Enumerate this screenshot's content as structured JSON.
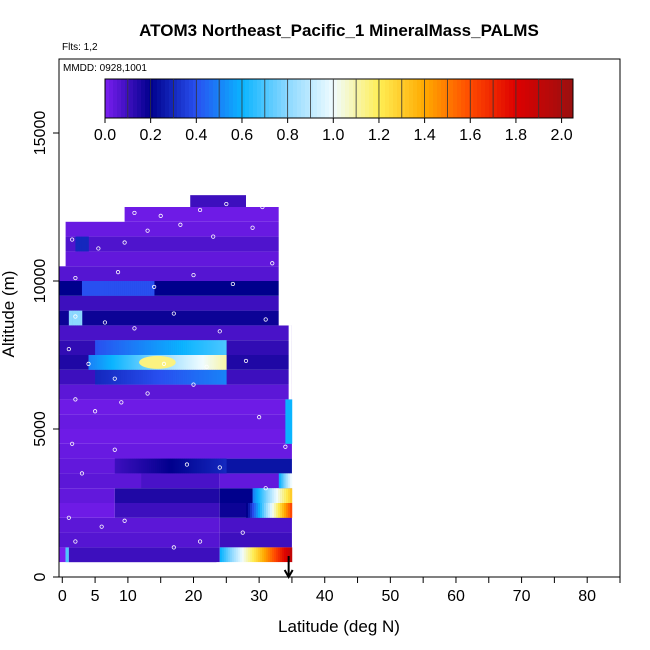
{
  "chart_data": {
    "type": "heatmap",
    "title": "ATOM3 Northeast_Pacific_1 MineralMass_PALMS",
    "subtitle_flights": "Flts: 1,2",
    "subtitle_dates": "MMDD: 0928,1001",
    "xlabel": "Latitude (deg N)",
    "ylabel": "Altitude (m)",
    "xlim": [
      -0.5,
      85
    ],
    "ylim": [
      0,
      17500
    ],
    "x_ticks": [
      0,
      5,
      10,
      20,
      30,
      40,
      50,
      60,
      70,
      80
    ],
    "x_tick_labels": [
      "0",
      "5",
      "10",
      "20",
      "30",
      "40",
      "50",
      "60",
      "70",
      "80"
    ],
    "x_minor_ticks": [
      15,
      25,
      35,
      45,
      55,
      65,
      75,
      85
    ],
    "y_ticks": [
      0,
      5000,
      10000,
      15000
    ],
    "y_tick_labels": [
      "0",
      "5000",
      "10000",
      "15000"
    ],
    "colorbar": {
      "min": 0.0,
      "max": 2.05,
      "tick_values": [
        0.0,
        0.2,
        0.4,
        0.6,
        0.8,
        1.0,
        1.2,
        1.4,
        1.6,
        1.8,
        2.0
      ],
      "tick_labels": [
        "0.0",
        "0.2",
        "0.4",
        "0.6",
        "0.8",
        "1.0",
        "1.2",
        "1.4",
        "1.6",
        "1.8",
        "2.0"
      ],
      "stops": [
        {
          "v": 0.0,
          "color": "#7a1ef0"
        },
        {
          "v": 0.2,
          "color": "#00008c"
        },
        {
          "v": 0.4,
          "color": "#2850f0"
        },
        {
          "v": 0.6,
          "color": "#0ab4ff"
        },
        {
          "v": 0.8,
          "color": "#8cd8ff"
        },
        {
          "v": 1.0,
          "color": "#f0fcff"
        },
        {
          "v": 1.2,
          "color": "#ffee55"
        },
        {
          "v": 1.4,
          "color": "#ffaa00"
        },
        {
          "v": 1.6,
          "color": "#ff4a00"
        },
        {
          "v": 1.8,
          "color": "#dd0000"
        },
        {
          "v": 2.05,
          "color": "#9a1010"
        }
      ]
    },
    "bands": [
      {
        "a0": 500,
        "a1": 1000,
        "segs": [
          [
            -0.5,
            0.5,
            0.0
          ],
          [
            0.5,
            1.0,
            0.7
          ],
          [
            1.0,
            24,
            0.1
          ]
        ]
      },
      {
        "a0": 1000,
        "a1": 1500,
        "segs": [
          [
            -0.5,
            24,
            0.06
          ],
          [
            24,
            35,
            0.1
          ]
        ]
      },
      {
        "a0": 1500,
        "a1": 2000,
        "segs": [
          [
            -0.5,
            24,
            0.05
          ],
          [
            24,
            35,
            0.08
          ]
        ]
      },
      {
        "a0": 2000,
        "a1": 2500,
        "segs": [
          [
            -0.5,
            8,
            0.02
          ],
          [
            8,
            24,
            0.1
          ],
          [
            24,
            30,
            0.18
          ],
          [
            30,
            35,
            0.12
          ]
        ]
      },
      {
        "a0": 2500,
        "a1": 3000,
        "segs": [
          [
            -0.5,
            8,
            0.04
          ],
          [
            8,
            24,
            0.15
          ],
          [
            24,
            30,
            0.2
          ],
          [
            30,
            35,
            0.12
          ]
        ]
      },
      {
        "a0": 3000,
        "a1": 3500,
        "segs": [
          [
            -0.5,
            12,
            0.05
          ],
          [
            12,
            24,
            0.08
          ],
          [
            24,
            35,
            0.04
          ]
        ]
      },
      {
        "a0": 3500,
        "a1": 4000,
        "segs": [
          [
            -0.5,
            15,
            0.04
          ],
          [
            15,
            24,
            0.1
          ],
          [
            24,
            35,
            0.25
          ]
        ]
      },
      {
        "a0": 4000,
        "a1": 4500,
        "segs": [
          [
            -0.5,
            35,
            0.03
          ]
        ]
      },
      {
        "a0": 4500,
        "a1": 5000,
        "segs": [
          [
            -0.5,
            35,
            0.02
          ]
        ]
      },
      {
        "a0": 5000,
        "a1": 5500,
        "segs": [
          [
            -0.5,
            35,
            0.03
          ]
        ]
      },
      {
        "a0": 5500,
        "a1": 6000,
        "segs": [
          [
            -0.5,
            35,
            0.02
          ]
        ]
      },
      {
        "a0": 6000,
        "a1": 6500,
        "segs": [
          [
            -0.5,
            35,
            0.05
          ]
        ]
      },
      {
        "a0": 6500,
        "a1": 7000,
        "segs": [
          [
            -0.5,
            35,
            0.1
          ]
        ]
      },
      {
        "a0": 7000,
        "a1": 7500,
        "segs": [
          [
            -0.5,
            35,
            0.15
          ]
        ]
      },
      {
        "a0": 7500,
        "a1": 8000,
        "segs": [
          [
            -0.5,
            35,
            0.12
          ]
        ]
      },
      {
        "a0": 8000,
        "a1": 8500,
        "segs": [
          [
            -0.5,
            35,
            0.08
          ]
        ]
      },
      {
        "a0": 8500,
        "a1": 9000,
        "segs": [
          [
            -0.5,
            33,
            0.18
          ]
        ]
      },
      {
        "a0": 9000,
        "a1": 9500,
        "segs": [
          [
            -0.5,
            33,
            0.1
          ]
        ]
      },
      {
        "a0": 9500,
        "a1": 10000,
        "segs": [
          [
            -0.5,
            33,
            0.2
          ]
        ]
      },
      {
        "a0": 10000,
        "a1": 10500,
        "segs": [
          [
            -0.5,
            33,
            0.06
          ]
        ]
      },
      {
        "a0": 10500,
        "a1": 11000,
        "segs": [
          [
            0.5,
            33,
            0.04
          ]
        ]
      },
      {
        "a0": 11000,
        "a1": 11500,
        "segs": [
          [
            0.5,
            33,
            0.07
          ]
        ]
      },
      {
        "a0": 11500,
        "a1": 12000,
        "segs": [
          [
            0.5,
            33,
            0.03
          ]
        ]
      },
      {
        "a0": 12000,
        "a1": 12500,
        "segs": [
          [
            9.5,
            33,
            0.02
          ]
        ]
      },
      {
        "a0": 12500,
        "a1": 12900,
        "segs": [
          [
            19.5,
            28,
            0.1
          ]
        ]
      }
    ],
    "features": [
      {
        "x0": 24,
        "x1": 35,
        "a0": 500,
        "a1": 1000,
        "v0": 0.6,
        "v1": 1.9
      },
      {
        "x0": 28,
        "x1": 35,
        "a0": 2000,
        "a1": 2500,
        "v0": 0.2,
        "v1": 1.6
      },
      {
        "x0": 29,
        "x1": 35,
        "a0": 2500,
        "a1": 3000,
        "v0": 0.5,
        "v1": 1.3
      },
      {
        "x0": 33,
        "x1": 35,
        "a0": 3000,
        "a1": 3500,
        "v0": 0.6,
        "v1": 1.0
      },
      {
        "x0": 8,
        "x1": 25,
        "a0": 3500,
        "a1": 4000,
        "v0": 0.1,
        "v1": 0.3
      },
      {
        "x0": 34,
        "x1": 35,
        "a0": 4500,
        "a1": 6000,
        "v0": 0.6,
        "v1": 0.6
      },
      {
        "x0": 5,
        "x1": 25,
        "a0": 6500,
        "a1": 7000,
        "v0": 0.3,
        "v1": 0.5
      },
      {
        "x0": 4,
        "x1": 25,
        "a0": 7000,
        "a1": 7500,
        "v0": 0.5,
        "v1": 1.1
      },
      {
        "x0": 5,
        "x1": 25,
        "a0": 7500,
        "a1": 8000,
        "v0": 0.4,
        "v1": 0.7
      },
      {
        "x0": 1,
        "x1": 3,
        "a0": 8500,
        "a1": 9000,
        "v0": 0.8,
        "v1": 0.8
      },
      {
        "x0": 3,
        "x1": 14,
        "a0": 9500,
        "a1": 10000,
        "v0": 0.4,
        "v1": 0.4
      },
      {
        "x0": 2,
        "x1": 4,
        "a0": 11000,
        "a1": 11500,
        "v0": 0.3,
        "v1": 0.3
      }
    ],
    "highlights": [
      {
        "x": 14.5,
        "a": 7250,
        "r": 2.8,
        "ra": 220,
        "v": 1.15
      }
    ],
    "empty_patches": [
      {
        "x0": 23.5,
        "x1": 35,
        "a0": 0,
        "a1": 500
      },
      {
        "x0": -0.5,
        "x1": 0.5,
        "a0": 0,
        "a1": 500
      },
      {
        "x0": -0.5,
        "x1": 0.5,
        "a0": 10500,
        "a1": 12000
      },
      {
        "x0": 33,
        "x1": 35,
        "a0": 8500,
        "a1": 12900
      },
      {
        "x0": 34.5,
        "x1": 35,
        "a0": 6000,
        "a1": 8500
      }
    ],
    "sample_points": [
      [
        0.5,
        200
      ],
      [
        1.0,
        2000
      ],
      [
        4.5,
        200
      ],
      [
        7.0,
        200
      ],
      [
        12.0,
        200
      ],
      [
        14.0,
        200
      ],
      [
        16.5,
        200
      ],
      [
        2.0,
        1200
      ],
      [
        6.0,
        1700
      ],
      [
        9.5,
        1900
      ],
      [
        17.0,
        1000
      ],
      [
        21.0,
        1200
      ],
      [
        27.5,
        1500
      ],
      [
        1.5,
        4500
      ],
      [
        3.0,
        3500
      ],
      [
        8.0,
        4300
      ],
      [
        19.0,
        3800
      ],
      [
        24.0,
        3700
      ],
      [
        31.0,
        3000
      ],
      [
        2.0,
        6000
      ],
      [
        5.0,
        5600
      ],
      [
        9.0,
        5900
      ],
      [
        13.0,
        6200
      ],
      [
        20.0,
        6500
      ],
      [
        30.0,
        5400
      ],
      [
        34.0,
        4400
      ],
      [
        1.0,
        7700
      ],
      [
        4.0,
        7200
      ],
      [
        8.0,
        6700
      ],
      [
        15.5,
        7200
      ],
      [
        22.0,
        7100
      ],
      [
        28.0,
        7300
      ],
      [
        2.0,
        8800
      ],
      [
        6.5,
        8600
      ],
      [
        11.0,
        8400
      ],
      [
        17.0,
        8900
      ],
      [
        24.0,
        8300
      ],
      [
        31.0,
        8700
      ],
      [
        2.0,
        10100
      ],
      [
        8.5,
        10300
      ],
      [
        14.0,
        9800
      ],
      [
        20.0,
        10200
      ],
      [
        26.0,
        9900
      ],
      [
        32.0,
        10600
      ],
      [
        1.5,
        11400
      ],
      [
        5.5,
        11100
      ],
      [
        9.5,
        11300
      ],
      [
        13.0,
        11700
      ],
      [
        18.0,
        11900
      ],
      [
        23.0,
        11500
      ],
      [
        29.0,
        11800
      ],
      [
        11.0,
        12300
      ],
      [
        15.0,
        12200
      ],
      [
        21.0,
        12400
      ],
      [
        25.0,
        12600
      ],
      [
        28.5,
        12700
      ],
      [
        30.5,
        12500
      ]
    ],
    "marker_arrow_lat": 34.5
  }
}
